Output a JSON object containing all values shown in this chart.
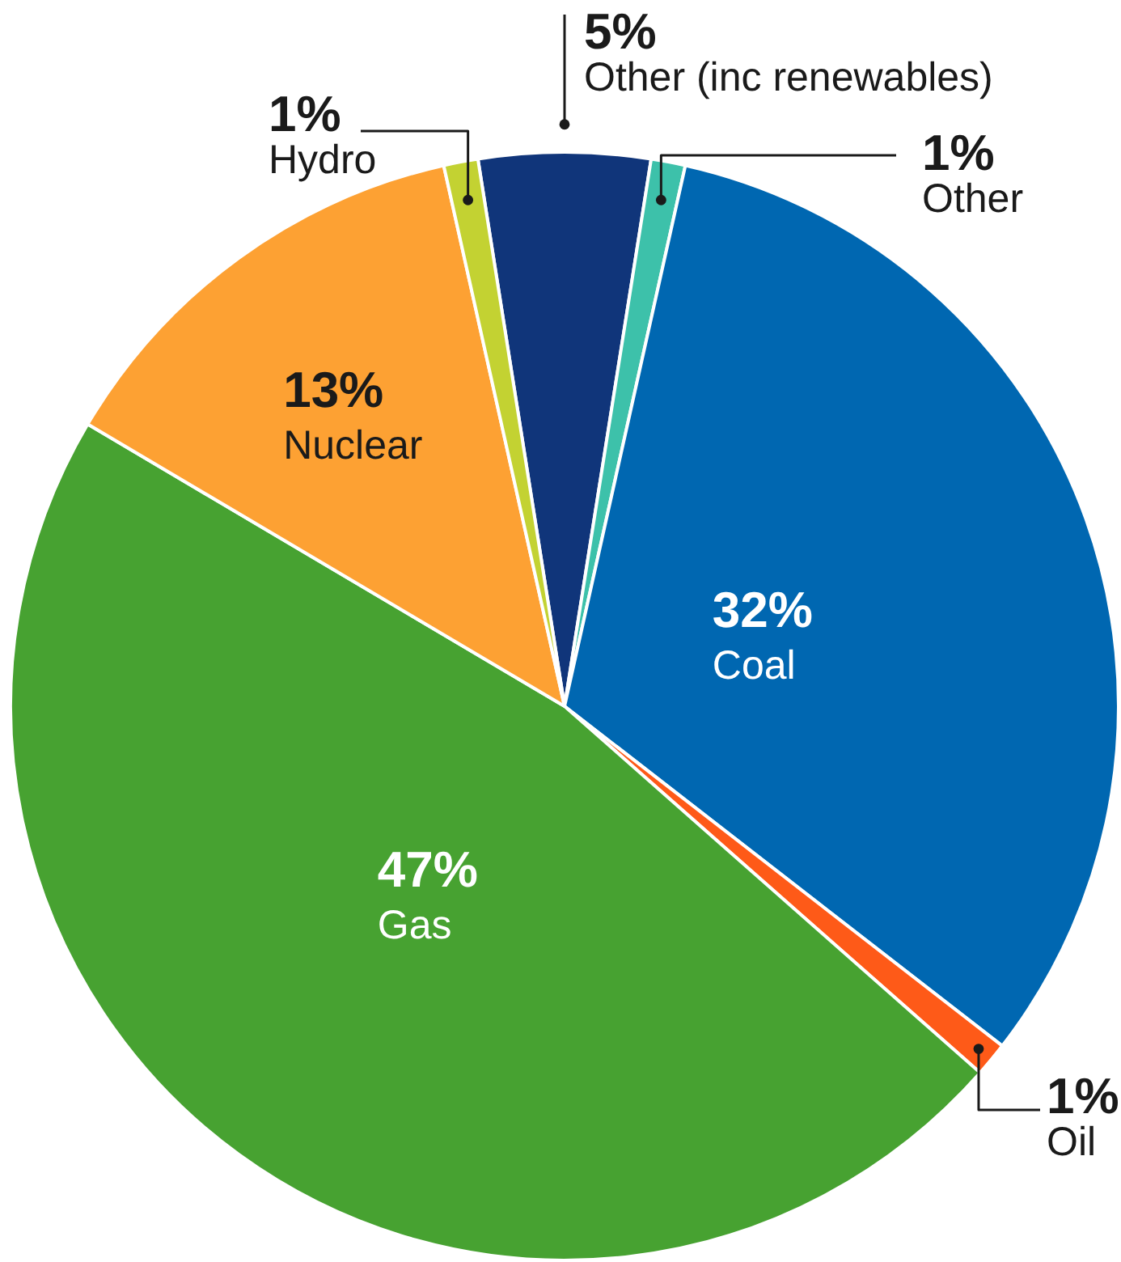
{
  "chart_data": {
    "type": "pie",
    "categories": [
      "Other (inc renewables)",
      "Other",
      "Coal",
      "Oil",
      "Gas",
      "Nuclear",
      "Hydro"
    ],
    "values": [
      5,
      1,
      32,
      1,
      47,
      13,
      1
    ],
    "colors": [
      "#10357a",
      "#3dc1aa",
      "#0067b1",
      "#fe5a18",
      "#47a231",
      "#fda133",
      "#c3d232"
    ],
    "value_labels": [
      "5%",
      "1%",
      "32%",
      "1%",
      "47%",
      "13%",
      "1%"
    ]
  }
}
